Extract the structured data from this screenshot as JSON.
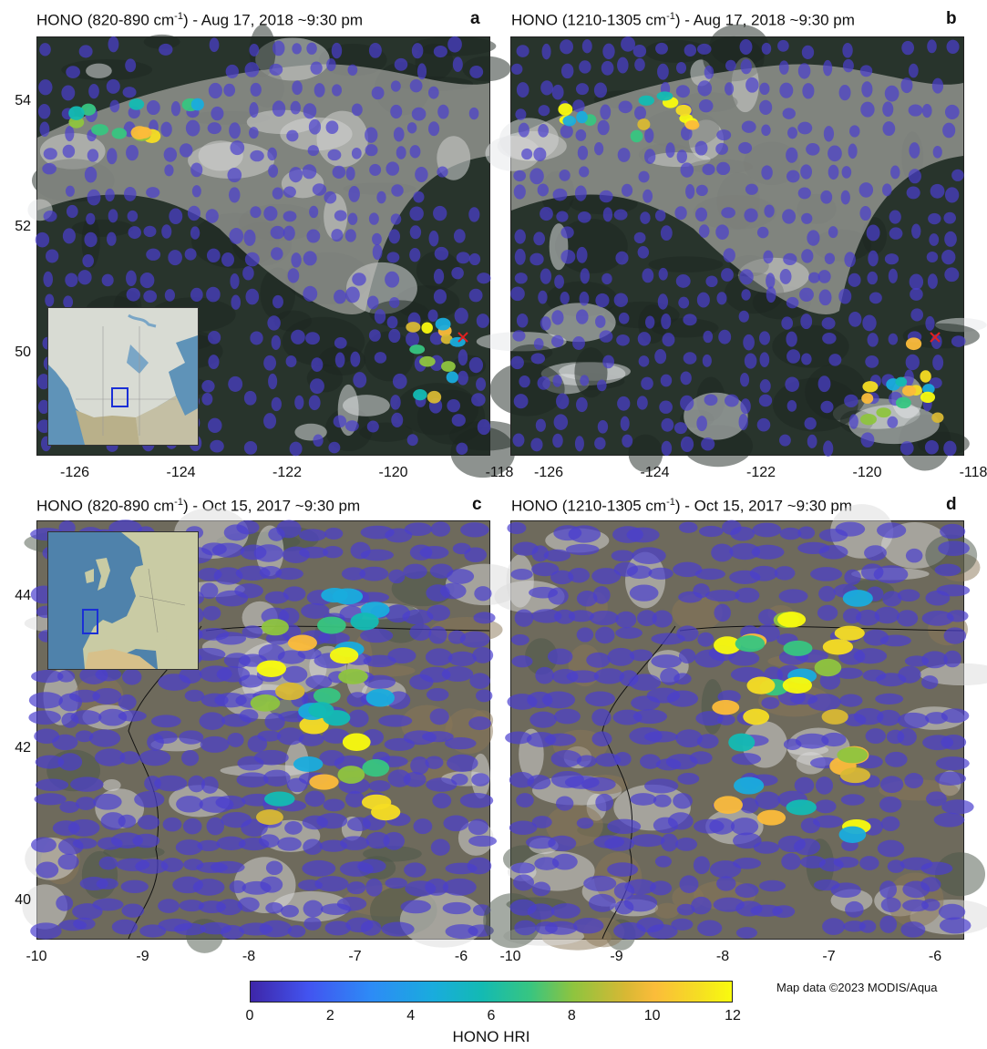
{
  "panels": {
    "a": {
      "title_prefix": "HONO (820-890 cm",
      "title_sup": "-1",
      "title_suffix": ") - Aug 17, 2018  ~9:30 pm",
      "letter": "a",
      "x_ticks": [
        "-126",
        "-124",
        "-122",
        "-120",
        "-118"
      ],
      "y_ticks": [
        "54",
        "52",
        "50"
      ],
      "has_inset": true,
      "inset_region": "north-america",
      "fire_marker": true
    },
    "b": {
      "title_prefix": "HONO (1210-1305 cm",
      "title_sup": "-1",
      "title_suffix": ") - Aug 17, 2018  ~9:30 pm",
      "letter": "b",
      "x_ticks": [
        "-126",
        "-124",
        "-122",
        "-120",
        "-118"
      ],
      "y_ticks": [],
      "has_inset": false,
      "fire_marker": true
    },
    "c": {
      "title_prefix": "HONO (820-890 cm",
      "title_sup": "-1",
      "title_suffix": ") - Oct 15, 2017  ~9:30 pm",
      "letter": "c",
      "x_ticks": [
        "-10",
        "-9",
        "-8",
        "-7",
        "-6"
      ],
      "y_ticks": [
        "44",
        "42",
        "40"
      ],
      "has_inset": true,
      "inset_region": "europe",
      "fire_marker": false
    },
    "d": {
      "title_prefix": "HONO (1210-1305 cm",
      "title_sup": "-1",
      "title_suffix": ") - Oct 15, 2017  ~9:30 pm",
      "letter": "d",
      "x_ticks": [
        "-10",
        "-9",
        "-8",
        "-7",
        "-6"
      ],
      "y_ticks": [],
      "has_inset": false,
      "fire_marker": false
    }
  },
  "colorbar": {
    "label": "HONO HRI",
    "ticks": [
      "0",
      "2",
      "4",
      "6",
      "8",
      "10",
      "12"
    ],
    "min": 0,
    "max": 12,
    "colormap": [
      "#3e26a8",
      "#4254f0",
      "#2d8bf6",
      "#19acdd",
      "#13bab3",
      "#37c581",
      "#8ec43f",
      "#d8b834",
      "#fbbc3a",
      "#f5dd23",
      "#f9fb0e"
    ]
  },
  "credit": "Map data ©2023 MODIS/Aqua",
  "colors": {
    "background_dots": "#4a3fcf",
    "fire_marker": "#e02020",
    "inset_box": "#1a2fd6",
    "land_brown": "#7a6a4a",
    "forest_dark": "#1e2a22",
    "smoke": "#b9b4b0"
  },
  "hri_points": {
    "a": [
      [
        5,
        7
      ],
      [
        7,
        9
      ],
      [
        6,
        11
      ],
      [
        8,
        12
      ],
      [
        7,
        6
      ],
      [
        6,
        8
      ],
      [
        6,
        10
      ],
      [
        4,
        4
      ],
      [
        5,
        3
      ],
      [
        7,
        5
      ],
      [
        9,
        6
      ],
      [
        8,
        4
      ]
    ],
    "b": [
      [
        12,
        8
      ],
      [
        11,
        11
      ],
      [
        12,
        12
      ],
      [
        10,
        10
      ],
      [
        12,
        9
      ],
      [
        11,
        7
      ],
      [
        5,
        6
      ],
      [
        4,
        4
      ],
      [
        6,
        3
      ],
      [
        8,
        5
      ],
      [
        12,
        11
      ],
      [
        6,
        10
      ],
      [
        5,
        4
      ],
      [
        12,
        7
      ]
    ],
    "c": [
      [
        3,
        4
      ],
      [
        7,
        3
      ],
      [
        6,
        5
      ],
      [
        4,
        6
      ],
      [
        8,
        7
      ],
      [
        12,
        8
      ],
      [
        11,
        6
      ],
      [
        5,
        9
      ],
      [
        7,
        12
      ],
      [
        10,
        11
      ],
      [
        4,
        3
      ],
      [
        11,
        12
      ],
      [
        3,
        5
      ],
      [
        5,
        7
      ]
    ],
    "d": [
      [
        3,
        4
      ],
      [
        6,
        7
      ],
      [
        10,
        9
      ],
      [
        11,
        12
      ],
      [
        9,
        11
      ],
      [
        8,
        10
      ],
      [
        4,
        5
      ],
      [
        12,
        12
      ],
      [
        6,
        8
      ],
      [
        10,
        7
      ],
      [
        11,
        9
      ],
      [
        5,
        3
      ],
      [
        12,
        11
      ],
      [
        7,
        6
      ]
    ]
  }
}
